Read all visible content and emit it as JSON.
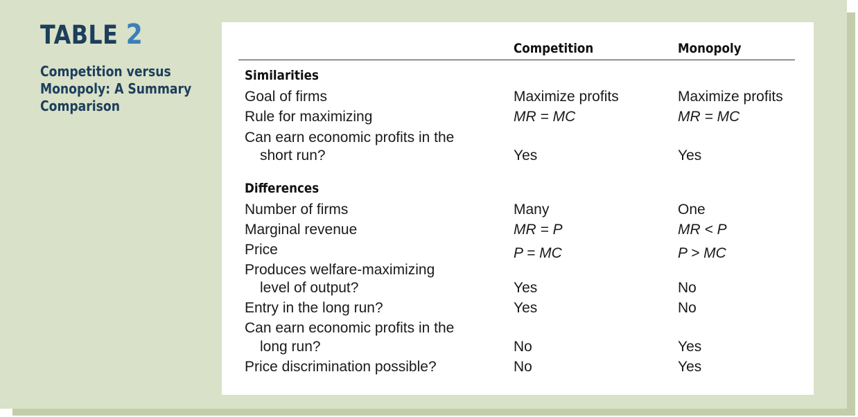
{
  "caption": {
    "label": "TABLE",
    "number": "2",
    "subtitle_lines": [
      "Competition versus",
      "Monopoly: A Summary",
      "Comparison"
    ]
  },
  "columns": {
    "competition": "Competition",
    "monopoly": "Monopoly"
  },
  "sections": [
    {
      "heading": "Similarities",
      "rows": [
        {
          "label": [
            "Goal of firms"
          ],
          "competition": "Maximize profits",
          "monopoly": "Maximize profits"
        },
        {
          "label": [
            "Rule for maximizing"
          ],
          "competition": "MR = MC",
          "monopoly": "MR = MC"
        },
        {
          "label": [
            "Can earn economic profits in the",
            "short run?"
          ],
          "competition": "Yes",
          "monopoly": "Yes"
        }
      ]
    },
    {
      "heading": "Differences",
      "rows": [
        {
          "label": [
            "Number of firms"
          ],
          "competition": "Many",
          "monopoly": "One"
        },
        {
          "label": [
            "Marginal revenue"
          ],
          "competition": "MR = P",
          "monopoly": "MR < P"
        },
        {
          "label": [
            "Price"
          ],
          "competition": "P = MC",
          "monopoly": "P > MC"
        },
        {
          "label": [
            "Produces welfare-maximizing",
            "level of output?"
          ],
          "competition": "Yes",
          "monopoly": "No"
        },
        {
          "label": [
            "Entry in the long run?"
          ],
          "competition": "Yes",
          "monopoly": "No"
        },
        {
          "label": [
            "Can earn economic profits in the",
            "long run?"
          ],
          "competition": "No",
          "monopoly": "Yes"
        },
        {
          "label": [
            "Price discrimination possible?"
          ],
          "competition": "No",
          "monopoly": "Yes"
        }
      ]
    }
  ],
  "colors": {
    "panel": "#d9e1c8",
    "heading": "#1d3e5c",
    "number_accent": "#3a7fba"
  }
}
